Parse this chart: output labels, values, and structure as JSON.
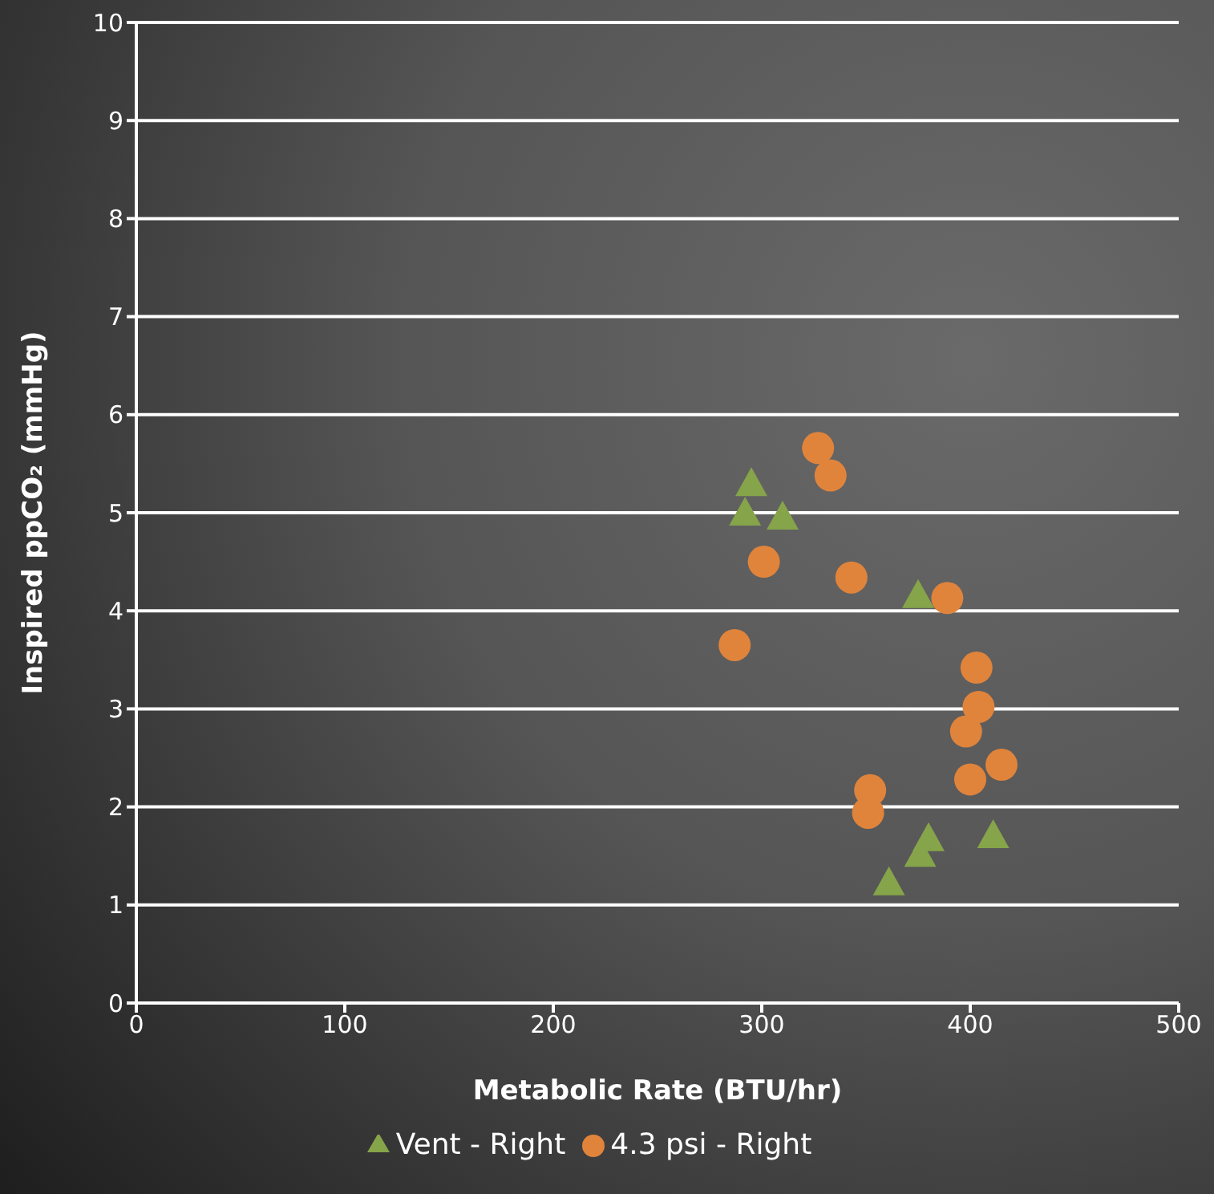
{
  "chart_data": {
    "type": "scatter",
    "xlabel": "Metabolic Rate (BTU/hr)",
    "ylabel": "Inspired ppCO₂ (mmHg)",
    "xlim": [
      0,
      500
    ],
    "xticks": [
      0,
      100,
      200,
      300,
      400,
      500
    ],
    "ylim": [
      0,
      10
    ],
    "yticks": [
      0,
      1,
      2,
      3,
      4,
      5,
      6,
      7,
      8,
      9,
      10
    ],
    "grid": "y",
    "legend": "bottom",
    "series": [
      {
        "name": "Vent - Right",
        "color": "#86a44a",
        "marker": "triangle",
        "x": [
          295,
          292,
          310,
          375,
          380,
          376,
          361,
          411
        ],
        "values": [
          5.3,
          5.0,
          4.96,
          4.16,
          1.68,
          1.52,
          1.23,
          1.71
        ]
      },
      {
        "name": "4.3 psi - Right",
        "color": "#e0843c",
        "marker": "circle",
        "x": [
          327,
          333,
          301,
          343,
          389,
          287,
          403,
          404,
          398,
          415,
          400,
          352,
          351
        ],
        "values": [
          5.66,
          5.38,
          4.5,
          4.34,
          4.13,
          3.65,
          3.42,
          3.02,
          2.77,
          2.43,
          2.28,
          2.17,
          1.94
        ]
      }
    ]
  }
}
